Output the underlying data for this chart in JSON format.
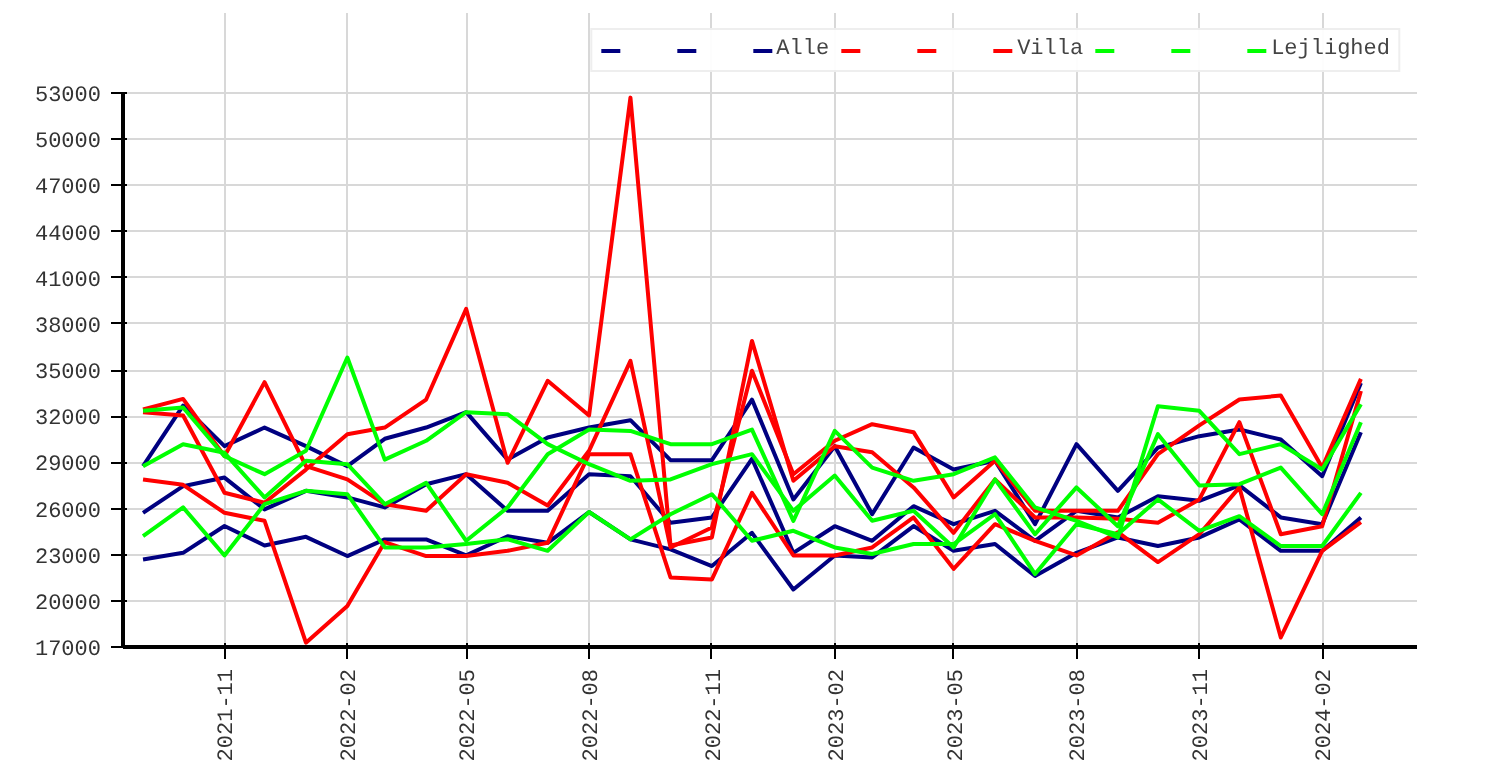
{
  "chart_data": {
    "type": "line",
    "x": [
      "2021-09",
      "2021-10",
      "2021-11",
      "2021-12",
      "2022-01",
      "2022-02",
      "2022-03",
      "2022-04",
      "2022-05",
      "2022-06",
      "2022-07",
      "2022-08",
      "2022-09",
      "2022-10",
      "2022-11",
      "2022-12",
      "2023-01",
      "2023-02",
      "2023-03",
      "2023-04",
      "2023-05",
      "2023-06",
      "2023-07",
      "2023-08",
      "2023-09",
      "2023-10",
      "2023-11",
      "2023-12",
      "2024-01",
      "2024-02",
      "2024-03"
    ],
    "series": [
      {
        "color": "#000080",
        "values": [
          28750,
          32690,
          30050,
          31260,
          30050,
          28750,
          30530,
          31260,
          32260,
          29180,
          30610,
          31260,
          31740,
          29140,
          29140,
          33080,
          26590,
          30050,
          25630,
          29960,
          28530,
          29100,
          24980,
          30180,
          27150,
          29960,
          30700,
          31130,
          30480,
          28100,
          34160
        ]
      },
      {
        "color": "#000080",
        "values": [
          25720,
          27450,
          28010,
          25940,
          27150,
          26720,
          26070,
          27580,
          28230,
          25850,
          25850,
          28230,
          28100,
          25070,
          25420,
          29230,
          23120,
          24850,
          23900,
          26150,
          24980,
          25850,
          23900,
          25850,
          25420,
          26800,
          26500,
          27500,
          25420,
          24980,
          30960
        ]
      },
      {
        "name": "Alle",
        "color": "#000080",
        "values": [
          22690,
          23120,
          24860,
          23600,
          24160,
          22910,
          23990,
          23990,
          22950,
          24200,
          23770,
          25770,
          23990,
          23340,
          22260,
          24420,
          20740,
          22950,
          22820,
          24860,
          23250,
          23690,
          21610,
          23120,
          24120,
          23560,
          24120,
          25290,
          23250,
          23250,
          25420
        ]
      },
      {
        "color": "#ff0000",
        "values": [
          32260,
          32040,
          27020,
          26370,
          28530,
          30830,
          31260,
          33080,
          38970,
          28970,
          34300,
          32040,
          52700,
          23600,
          24120,
          36890,
          27800,
          30050,
          29660,
          27370,
          24420,
          27890,
          25420,
          25420,
          25330,
          25070,
          26590,
          31610,
          24330,
          24850,
          33640
        ]
      },
      {
        "color": "#ff0000",
        "values": [
          32430,
          33120,
          29400,
          34210,
          28750,
          27890,
          26280,
          25850,
          28230,
          27670,
          26200,
          29750,
          35590,
          23470,
          24770,
          34950,
          28230,
          30400,
          31480,
          30960,
          26720,
          29100,
          25850,
          25850,
          25850,
          29530,
          31400,
          33080,
          33340,
          28660,
          34420
        ]
      },
      {
        "name": "Villa",
        "color": "#ff0000",
        "values": [
          27890,
          27540,
          25720,
          25200,
          17280,
          19660,
          23820,
          22910,
          22910,
          23250,
          23770,
          29530,
          29530,
          21520,
          21390,
          27020,
          22950,
          22950,
          23470,
          25420,
          22080,
          24980,
          23900,
          22950,
          24460,
          22520,
          24330,
          27370,
          17620,
          23250,
          25120
        ]
      },
      {
        "color": "#00ff00",
        "values": [
          32350,
          32560,
          29400,
          28230,
          29750,
          35810,
          29180,
          30400,
          32260,
          32130,
          30180,
          28880,
          27800,
          27890,
          28880,
          29530,
          25850,
          28140,
          25200,
          25850,
          23470,
          27890,
          24330,
          27370,
          24850,
          30830,
          27500,
          27580,
          28660,
          25630,
          31610
        ]
      },
      {
        "color": "#00ff00",
        "values": [
          28750,
          30180,
          29620,
          26720,
          29100,
          28880,
          26280,
          27670,
          23900,
          26070,
          29530,
          31130,
          31040,
          30180,
          30180,
          31130,
          25200,
          31040,
          28660,
          27800,
          28230,
          29320,
          26070,
          25200,
          24120,
          32650,
          32350,
          29530,
          30180,
          28530,
          32780
        ]
      },
      {
        "name": "Lejlighed",
        "color": "#00ff00",
        "values": [
          24200,
          26070,
          22950,
          26280,
          27150,
          26930,
          23470,
          23470,
          23690,
          24000,
          23250,
          25770,
          23990,
          25630,
          26930,
          23900,
          24550,
          23470,
          23040,
          23690,
          23690,
          25630,
          21740,
          24980,
          24330,
          26590,
          24550,
          25500,
          23560,
          23560,
          27020
        ]
      }
    ],
    "xlim": [
      "2021-08-17",
      "2024-04-12"
    ],
    "xticks": [
      "2021-11",
      "2022-02",
      "2022-05",
      "2022-08",
      "2022-11",
      "2023-02",
      "2023-05",
      "2023-08",
      "2023-11",
      "2024-02"
    ],
    "ylim": [
      17000,
      53000
    ],
    "yticks": [
      17000,
      20000,
      23000,
      26000,
      29000,
      32000,
      35000,
      38000,
      41000,
      44000,
      47000,
      50000,
      53000
    ],
    "grid": true,
    "legend": "top right",
    "line_style": "solid",
    "marker": "none"
  }
}
